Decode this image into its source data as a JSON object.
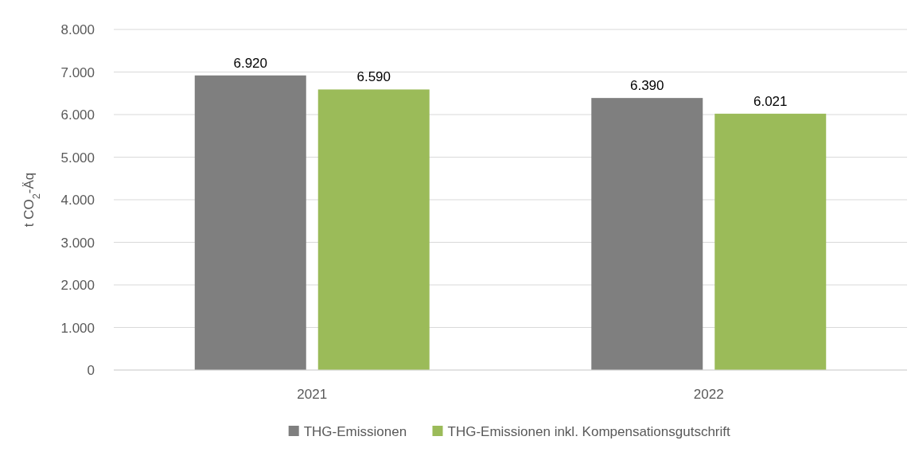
{
  "chart_data": {
    "type": "bar",
    "ylabel": "t CO$_{2}$-Äq",
    "categories": [
      "2021",
      "2022"
    ],
    "series": [
      {
        "name": "THG-Emissionen",
        "color": "#7f7f7f",
        "values": [
          6920,
          6390
        ],
        "value_labels": [
          "6.920",
          "6.390"
        ]
      },
      {
        "name": "THG-Emissionen inkl. Kompensationsgutschrift",
        "color": "#9bbb59",
        "values": [
          6590,
          6021
        ],
        "value_labels": [
          "6.590",
          "6.021"
        ]
      }
    ],
    "ylim": [
      0,
      8000
    ],
    "yticks": [
      {
        "value": 0,
        "label": "0"
      },
      {
        "value": 1000,
        "label": "1.000"
      },
      {
        "value": 2000,
        "label": "2.000"
      },
      {
        "value": 3000,
        "label": "3.000"
      },
      {
        "value": 4000,
        "label": "4.000"
      },
      {
        "value": 5000,
        "label": "5.000"
      },
      {
        "value": 6000,
        "label": "6.000"
      },
      {
        "value": 7000,
        "label": "7.000"
      },
      {
        "value": 8000,
        "label": "8.000"
      }
    ],
    "grid": "y",
    "legend": "bottom"
  }
}
